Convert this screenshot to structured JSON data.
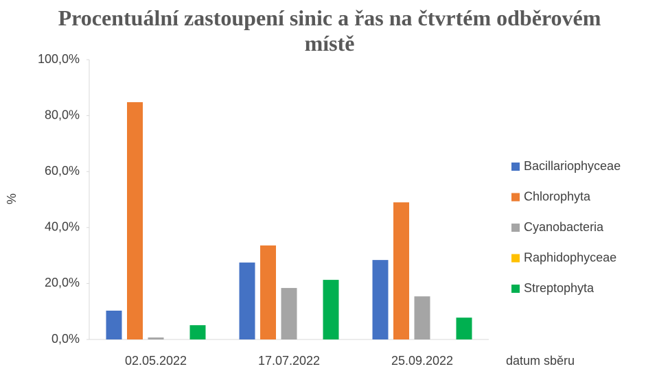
{
  "chart_data": {
    "type": "bar",
    "title": "Procentuální zastoupení sinic a řas na čtvrtém odběrovém místě",
    "y_label": "%",
    "x_label": "datum sběru",
    "categories": [
      "02.05.2022",
      "17.07.2022",
      "25.09.2022"
    ],
    "series": [
      {
        "name": "Bacillariophyceae",
        "color": "#4472c4",
        "values": [
          10.3,
          27.5,
          28.4
        ]
      },
      {
        "name": "Chlorophyta",
        "color": "#ed7d31",
        "values": [
          84.8,
          33.6,
          49.0
        ]
      },
      {
        "name": "Cyanobacteria",
        "color": "#a5a5a5",
        "values": [
          0.7,
          18.4,
          15.4
        ]
      },
      {
        "name": "Raphidophyceae",
        "color": "#ffc000",
        "values": [
          0,
          0,
          0
        ]
      },
      {
        "name": "Streptophyta",
        "color": "#00b050",
        "values": [
          5.1,
          21.3,
          7.8
        ]
      }
    ],
    "ylim": [
      0,
      100
    ],
    "yticks": [
      {
        "value": 0,
        "label": "0,0%"
      },
      {
        "value": 20,
        "label": "20,0%"
      },
      {
        "value": 40,
        "label": "40,0%"
      },
      {
        "value": 60,
        "label": "60,0%"
      },
      {
        "value": 80,
        "label": "80,0%"
      },
      {
        "value": 100,
        "label": "100,0%"
      }
    ],
    "grid": false,
    "legend": "right"
  }
}
